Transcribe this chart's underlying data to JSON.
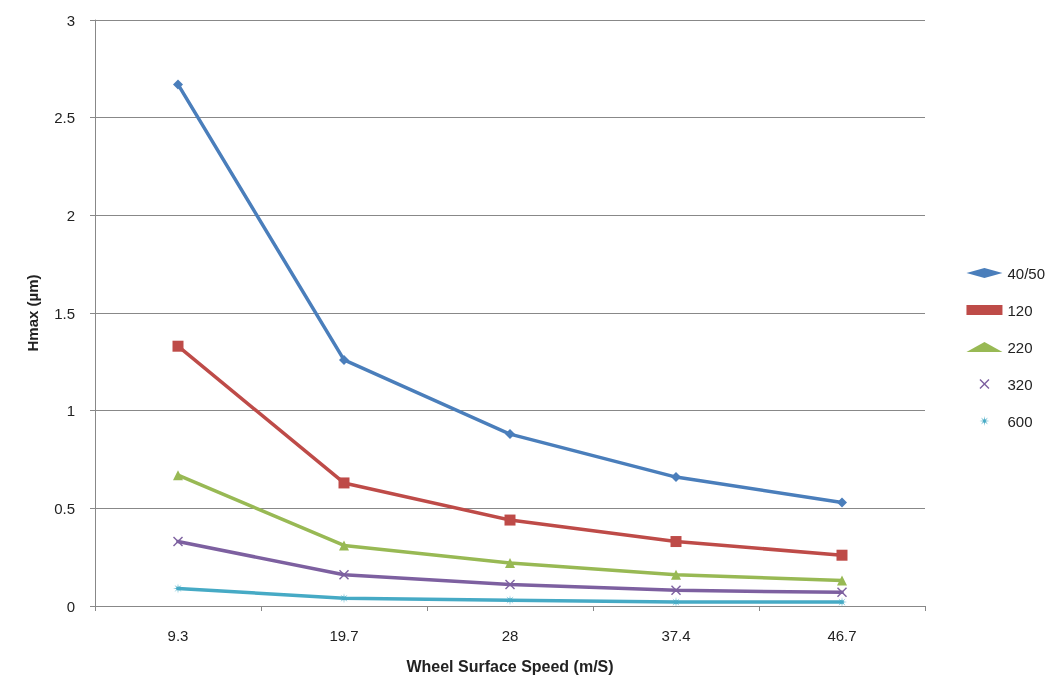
{
  "chart_data": {
    "type": "line",
    "xlabel": "Wheel Surface Speed (m/S)",
    "ylabel": "Hmax (µm)",
    "categories": [
      "9.3",
      "19.7",
      "28",
      "37.4",
      "46.7"
    ],
    "series": [
      {
        "name": "40/50",
        "color": "#4a7ebb",
        "marker": "diamond",
        "values": [
          2.67,
          1.26,
          0.88,
          0.66,
          0.53
        ]
      },
      {
        "name": "120",
        "color": "#be4b48",
        "marker": "square",
        "values": [
          1.33,
          0.63,
          0.44,
          0.33,
          0.26
        ]
      },
      {
        "name": "220",
        "color": "#98b954",
        "marker": "triangle",
        "values": [
          0.67,
          0.31,
          0.22,
          0.16,
          0.13
        ]
      },
      {
        "name": "320",
        "color": "#7d60a0",
        "marker": "cross",
        "values": [
          0.33,
          0.16,
          0.11,
          0.08,
          0.07
        ]
      },
      {
        "name": "600",
        "color": "#46aac5",
        "marker": "star",
        "values": [
          0.09,
          0.04,
          0.03,
          0.02,
          0.02
        ]
      }
    ],
    "ylim": [
      0,
      3
    ],
    "yticks": [
      0,
      0.5,
      1,
      1.5,
      2,
      2.5,
      3
    ],
    "grid": "y",
    "legend": "right",
    "line_style": "solid"
  }
}
